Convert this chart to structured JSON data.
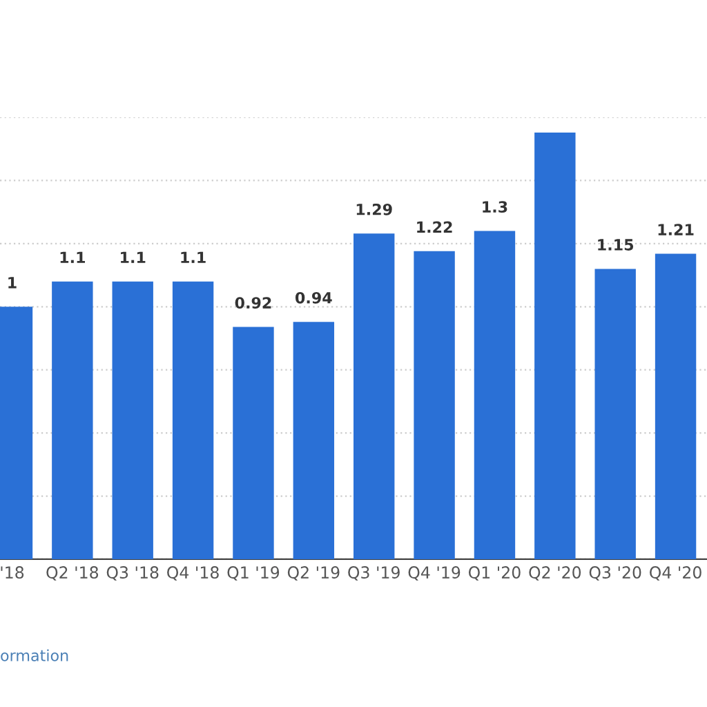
{
  "chart_data": {
    "type": "bar",
    "categories": [
      "'18",
      "Q2 '18",
      "Q3 '18",
      "Q4 '18",
      "Q1 '19",
      "Q2 '19",
      "Q3 '19",
      "Q4 '19",
      "Q1 '20",
      "Q2 '20",
      "Q3 '20",
      "Q4 '20"
    ],
    "values": [
      1,
      1.1,
      1.1,
      1.1,
      0.92,
      0.94,
      1.29,
      1.22,
      1.3,
      1.69,
      1.15,
      1.21
    ],
    "value_labels": [
      "1",
      "1.1",
      "1.1",
      "1.1",
      "0.92",
      "0.94",
      "1.29",
      "1.22",
      "1.3",
      null,
      "1.15",
      "1.21"
    ],
    "color": "#2a70d6",
    "ylim": [
      0,
      1.75
    ],
    "yticks": [
      {
        "value": 0,
        "label": null
      },
      {
        "value": 0.25,
        "label": null
      },
      {
        "value": 0.5,
        "label": null
      },
      {
        "value": 0.75,
        "label": null
      },
      {
        "value": 1.0,
        "label": null
      },
      {
        "value": 1.25,
        "label": null
      },
      {
        "value": 1.5,
        "label": null
      },
      {
        "value": 1.75,
        "label": null
      }
    ],
    "tick_labels": "x",
    "grid": "y",
    "annotations": [
      "ormation"
    ]
  }
}
